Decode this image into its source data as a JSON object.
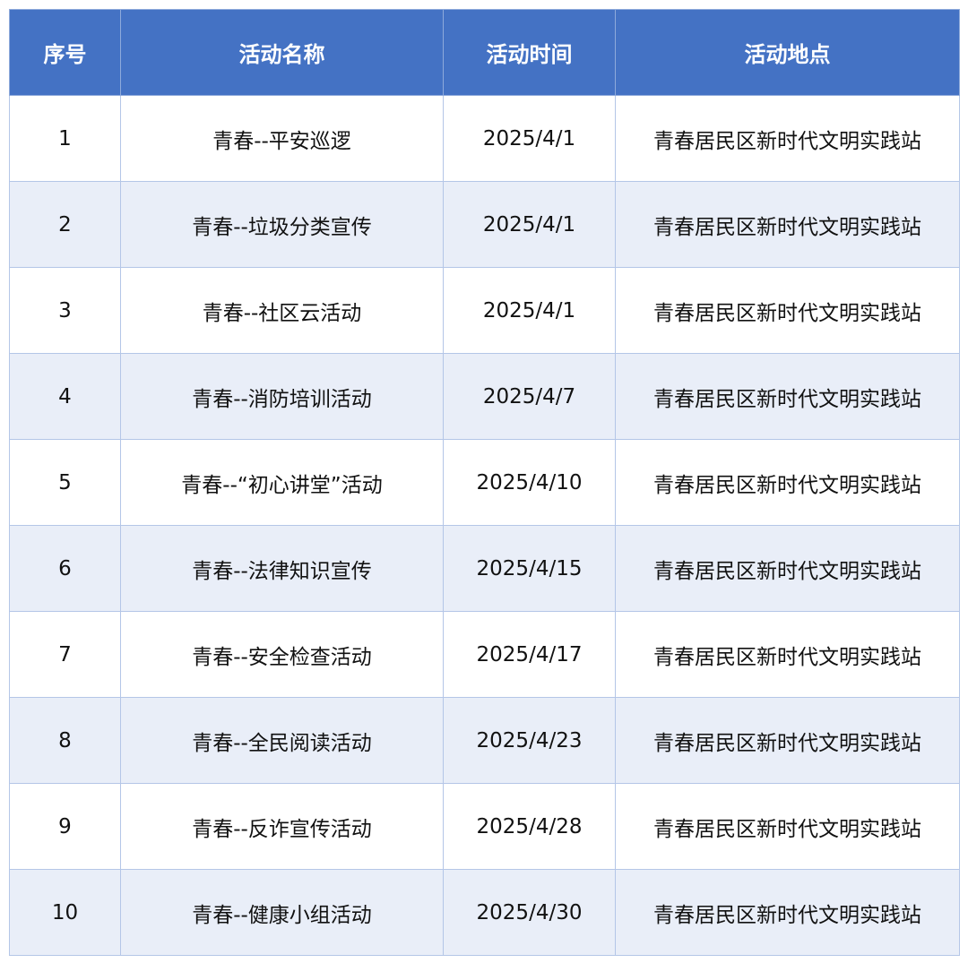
{
  "colors": {
    "header_bg": "#4472c4",
    "alt_row_bg": "#e9eef8",
    "border": "#b4c6e7"
  },
  "table": {
    "headers": [
      "序号",
      "活动名称",
      "活动时间",
      "活动地点"
    ],
    "rows": [
      [
        "1",
        "青春--平安巡逻",
        "2025/4/1",
        "青春居民区新时代文明实践站"
      ],
      [
        "2",
        "青春--垃圾分类宣传",
        "2025/4/1",
        "青春居民区新时代文明实践站"
      ],
      [
        "3",
        "青春--社区云活动",
        "2025/4/1",
        "青春居民区新时代文明实践站"
      ],
      [
        "4",
        "青春--消防培训活动",
        "2025/4/7",
        "青春居民区新时代文明实践站"
      ],
      [
        "5",
        "青春--“初心讲堂”活动",
        "2025/4/10",
        "青春居民区新时代文明实践站"
      ],
      [
        "6",
        "青春--法律知识宣传",
        "2025/4/15",
        "青春居民区新时代文明实践站"
      ],
      [
        "7",
        "青春--安全检查活动",
        "2025/4/17",
        "青春居民区新时代文明实践站"
      ],
      [
        "8",
        "青春--全民阅读活动",
        "2025/4/23",
        "青春居民区新时代文明实践站"
      ],
      [
        "9",
        "青春--反诈宣传活动",
        "2025/4/28",
        "青春居民区新时代文明实践站"
      ],
      [
        "10",
        "青春--健康小组活动",
        "2025/4/30",
        "青春居民区新时代文明实践站"
      ]
    ]
  }
}
